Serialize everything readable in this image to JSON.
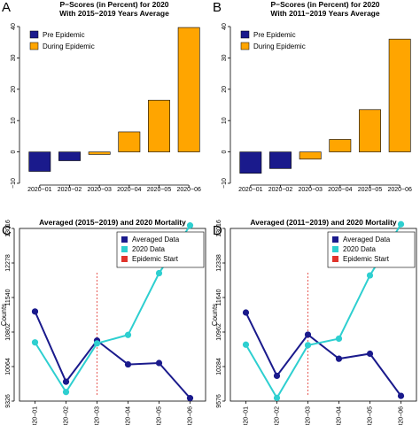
{
  "colors": {
    "pre": "#1a1a8c",
    "during": "#ffa500",
    "averaged": "#1a1a8c",
    "data2020": "#2ecfd0",
    "epidemic": "#e0342c"
  },
  "chart_data": [
    {
      "type": "bar",
      "panel_label": "A",
      "title": "P−Scores (in Percent) for 2020",
      "subtitle": "With 2015−2019 Years Average",
      "categories": [
        "2020−01",
        "2020−02",
        "2020−03",
        "2020−04",
        "2020−05",
        "2020−06"
      ],
      "values": [
        -6.2,
        -2.8,
        -0.8,
        6.4,
        16.5,
        39.7
      ],
      "groups": [
        "Pre Epidemic",
        "Pre Epidemic",
        "During Epidemic",
        "During Epidemic",
        "During Epidemic",
        "During Epidemic"
      ],
      "legend": [
        "Pre Epidemic",
        "During Epidemic"
      ],
      "legend_position": "top-left",
      "ylim": [
        -10,
        40
      ],
      "yticks": [
        "−10",
        "0",
        "10",
        "20",
        "30",
        "40"
      ]
    },
    {
      "type": "bar",
      "panel_label": "B",
      "title": "P−Scores (in Percent) for 2020",
      "subtitle": "With 2011−2019 Years Average",
      "categories": [
        "2020−01",
        "2020−02",
        "2020−03",
        "2020−04",
        "2020−05",
        "2020−06"
      ],
      "values": [
        -6.8,
        -5.3,
        -2.3,
        4.0,
        13.5,
        36.0
      ],
      "groups": [
        "Pre Epidemic",
        "Pre Epidemic",
        "During Epidemic",
        "During Epidemic",
        "During Epidemic",
        "During Epidemic"
      ],
      "legend": [
        "Pre Epidemic",
        "During Epidemic"
      ],
      "legend_position": "top-left",
      "ylim": [
        -10,
        40
      ],
      "yticks": [
        "−10",
        "0",
        "10",
        "20",
        "30",
        "40"
      ]
    },
    {
      "type": "line",
      "panel_label": "C",
      "title": "Averaged (2015−2019) and 2020 Mortality",
      "ylabel": "Counts",
      "categories": [
        "2020−01",
        "2020−02",
        "2020−03",
        "2020−04",
        "2020−05",
        "2020−06"
      ],
      "series": [
        {
          "name": "Averaged Data",
          "values": [
            11240,
            9740,
            10620,
            10110,
            10140,
            9390
          ]
        },
        {
          "name": "2020 Data",
          "values": [
            10580,
            9520,
            10560,
            10740,
            12060,
            13080
          ]
        }
      ],
      "epidemic_start": "Epidemic Start",
      "epidemic_start_x": 2.5,
      "legend_position": "top-right",
      "ylim": [
        9326,
        13016
      ],
      "yticks": [
        "9326",
        "10064",
        "10802",
        "11540",
        "12278",
        "13016"
      ]
    },
    {
      "type": "line",
      "panel_label": "D",
      "title": "Averaged (2011−2019) and 2020 Mortality",
      "ylabel": "Counts",
      "categories": [
        "2020−01",
        "2020−02",
        "2020−03",
        "2020−04",
        "2020−05",
        "2020−06"
      ],
      "series": [
        {
          "name": "Averaged Data",
          "values": [
            11340,
            10080,
            10900,
            10420,
            10520,
            9680
          ]
        },
        {
          "name": "2020 Data",
          "values": [
            10700,
            9640,
            10690,
            10820,
            12080,
            13100
          ]
        }
      ],
      "epidemic_start": "Epidemic Start",
      "epidemic_start_x": 2.5,
      "legend_position": "top-right",
      "ylim": [
        9576,
        13016
      ],
      "yticks": [
        "9576",
        "10284",
        "10962",
        "11640",
        "12338",
        "13016"
      ]
    }
  ]
}
